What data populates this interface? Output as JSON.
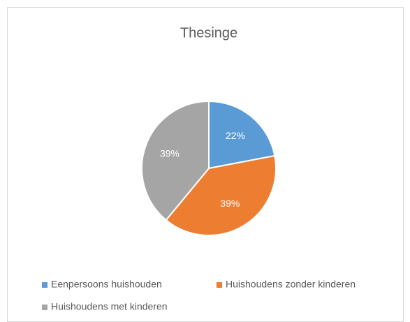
{
  "chart_data": {
    "type": "pie",
    "title": "Thesinge",
    "categories": [
      "Eenpersoons huishouden",
      "Huishoudens zonder kinderen",
      "Huishoudens met kinderen"
    ],
    "values": [
      22,
      39,
      39
    ],
    "value_labels": [
      "22%",
      "39%",
      "39%"
    ],
    "colors": [
      "#5b9bd5",
      "#ed7d31",
      "#a5a5a5"
    ],
    "legend": "bottom"
  }
}
